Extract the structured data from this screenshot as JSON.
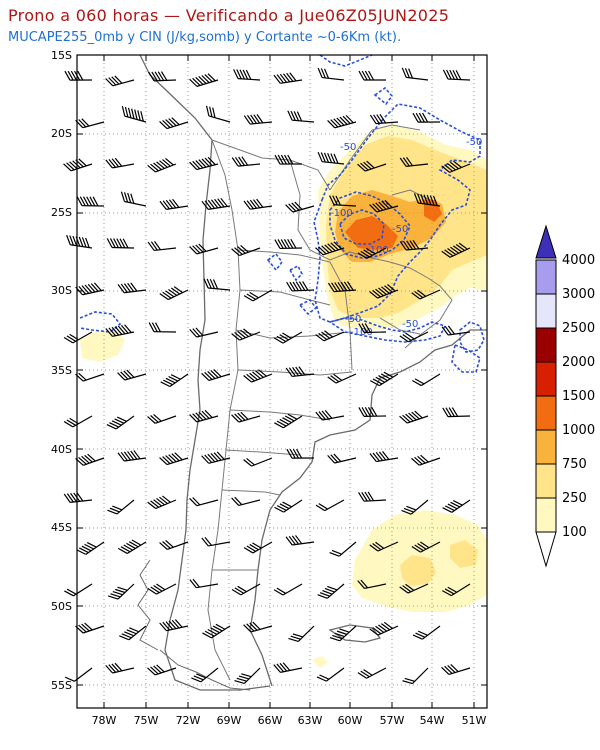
{
  "title": "Prono a 060 horas — Verificando a Jue06Z05JUN2025",
  "subtitle": "MUCAPE255_0mb y CIN (J/kg,somb) y Cortante ~0-6Km (kt).",
  "lat_labels": [
    "15S",
    "20S",
    "25S",
    "30S",
    "35S",
    "40S",
    "45S",
    "50S",
    "55S"
  ],
  "lon_labels": [
    "78W",
    "75W",
    "72W",
    "69W",
    "66W",
    "63W",
    "60W",
    "57W",
    "54W",
    "51W"
  ],
  "colorbar": {
    "levels": [
      "100",
      "250",
      "750",
      "1000",
      "1500",
      "2000",
      "2500",
      "3000",
      "4000"
    ],
    "colors": [
      "#fff8c0",
      "#ffe48a",
      "#f9b23c",
      "#f26d12",
      "#d62000",
      "#9a0000",
      "#e6e6fb",
      "#a79cee",
      "#6b5ed8",
      "#3c2fb8"
    ]
  },
  "cin_labels": [
    "-50",
    "-100",
    "-50",
    "-50",
    "-50",
    "-100",
    "-50",
    "-100"
  ],
  "colors": {
    "title": "#b01515",
    "subtitle": "#1f6fd0",
    "cin_contour": "#2a4fd8",
    "border": "#7a7a7a",
    "coast": "#6a6a6a",
    "grid": "#9a9a9a"
  }
}
